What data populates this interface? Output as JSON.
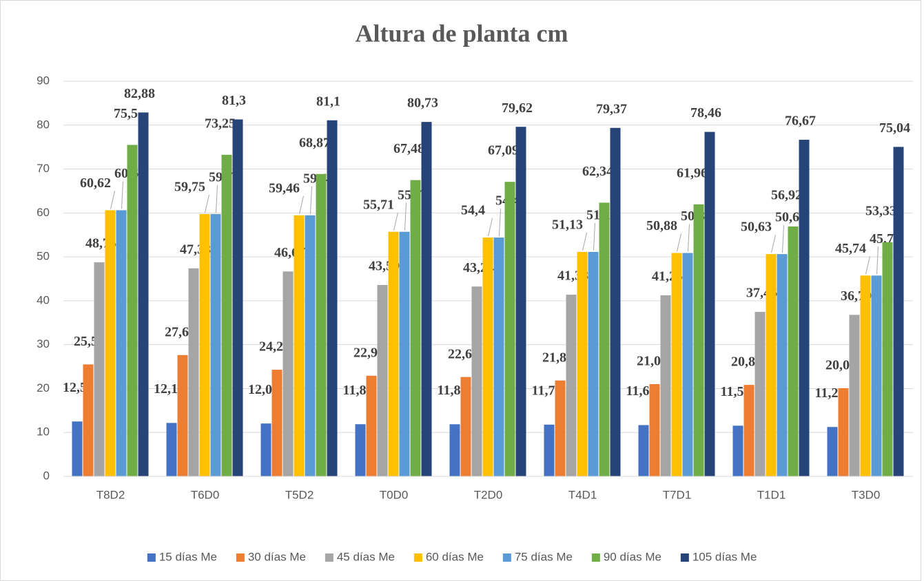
{
  "chart_data": {
    "type": "bar",
    "title": "Altura de planta cm",
    "categories": [
      "T8D2",
      "T6D0",
      "T5D2",
      "T0D0",
      "T2D0",
      "T4D1",
      "T7D1",
      "T1D1",
      "T3D0"
    ],
    "ylim": [
      0,
      90
    ],
    "yticks": [
      0,
      10,
      20,
      30,
      40,
      50,
      60,
      70,
      80,
      90
    ],
    "grid": true,
    "legend": "bottom",
    "series": [
      {
        "name": "15 días Me",
        "color": "#4472c4",
        "values": [
          12.5,
          12.17,
          12.04,
          11.88,
          11.87,
          11.79,
          11.68,
          11.54,
          11.25
        ],
        "value_labels": [
          "12,5",
          "12,17",
          "12,04",
          "11,88",
          "11,87",
          "11,79",
          "11,68",
          "11,54",
          "11,25"
        ]
      },
      {
        "name": "30 días Me",
        "color": "#ed7d31",
        "values": [
          25.5,
          27.63,
          24.29,
          22.92,
          22.63,
          21.84,
          21.01,
          20.84,
          20.09
        ],
        "value_labels": [
          "25,5",
          "27,63",
          "24,29",
          "22,92",
          "22,63",
          "21,84",
          "21,01",
          "20,84",
          "20,09"
        ]
      },
      {
        "name": "45 días Me",
        "color": "#a5a5a5",
        "values": [
          48.75,
          47.38,
          46.67,
          43.59,
          43.24,
          41.38,
          41.25,
          37.46,
          36.79
        ],
        "value_labels": [
          "48,75",
          "47,38",
          "46,67",
          "43,59",
          "43,24",
          "41,38",
          "41,25",
          "37,46",
          "36,79"
        ]
      },
      {
        "name": "60 días Me",
        "color": "#ffc000",
        "values": [
          60.62,
          59.75,
          59.46,
          55.71,
          54.4,
          51.13,
          50.88,
          50.63,
          45.74
        ],
        "value_labels": [
          "60,62",
          "59,75",
          "59,46",
          "55,71",
          "54,4",
          "51,13",
          "50,88",
          "50,63",
          "45,74"
        ]
      },
      {
        "name": "75 días Me",
        "color": "#5b9bd5",
        "values": [
          60.62,
          59.75,
          59.46,
          55.71,
          54.4,
          51.13,
          50.88,
          50.63,
          45.74
        ],
        "value_labels": [
          "60,62",
          "59,75",
          "59,46",
          "55,71",
          "54,4",
          "51,13",
          "50,88",
          "50,63",
          "45,74"
        ]
      },
      {
        "name": "90 días Me",
        "color": "#70ad47",
        "values": [
          75.5,
          73.25,
          68.87,
          67.48,
          67.09,
          62.34,
          61.96,
          56.92,
          53.33
        ],
        "value_labels": [
          "75,5",
          "73,25",
          "68,87",
          "67,48",
          "67,09",
          "62,34",
          "61,96",
          "56,92",
          "53,33"
        ]
      },
      {
        "name": "105 días Me",
        "color": "#264478",
        "values": [
          82.88,
          81.3,
          81.1,
          80.73,
          79.62,
          79.37,
          78.46,
          76.67,
          75.04
        ],
        "value_labels": [
          "82,88",
          "81,3",
          "81,1",
          "80,73",
          "79,62",
          "79,37",
          "78,46",
          "76,67",
          "75,04"
        ]
      }
    ]
  }
}
